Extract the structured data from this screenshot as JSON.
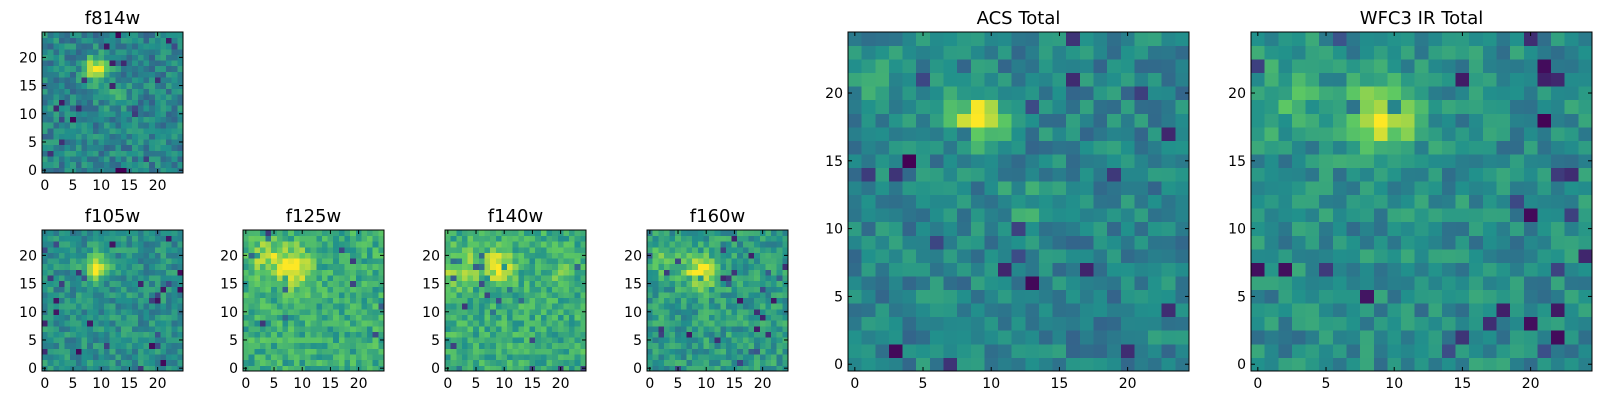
{
  "figure": {
    "colormap": "viridis",
    "colormap_stops": [
      "#440154",
      "#3b528b",
      "#21918c",
      "#5ec962",
      "#fde725"
    ]
  },
  "chart_data": [
    {
      "type": "heatmap",
      "title": "f814w",
      "grid_size": [
        25,
        25
      ],
      "xticks": [
        0,
        5,
        10,
        15,
        20
      ],
      "yticks": [
        0,
        5,
        10,
        15,
        20
      ],
      "xlim": [
        0,
        24
      ],
      "ylim": [
        0,
        24
      ],
      "source": {
        "x": 9,
        "y": 18,
        "sigma": 1.4,
        "amp": 0.55
      },
      "secondary_sources": [
        {
          "x": 12,
          "y": 13,
          "sigma": 1.5,
          "amp": 0.15
        }
      ],
      "background_level": 0.45,
      "noise": 0.14
    },
    {
      "type": "heatmap",
      "title": "f105w",
      "grid_size": [
        25,
        25
      ],
      "xticks": [
        0,
        5,
        10,
        15,
        20
      ],
      "yticks": [
        0,
        5,
        10,
        15,
        20
      ],
      "xlim": [
        0,
        24
      ],
      "ylim": [
        0,
        24
      ],
      "source": {
        "x": 9,
        "y": 18,
        "sigma": 1.5,
        "amp": 0.5
      },
      "secondary_sources": [],
      "background_level": 0.5,
      "noise": 0.13
    },
    {
      "type": "heatmap",
      "title": "f125w",
      "grid_size": [
        25,
        25
      ],
      "xticks": [
        0,
        5,
        10,
        15,
        20
      ],
      "yticks": [
        0,
        5,
        10,
        15,
        20
      ],
      "xlim": [
        0,
        24
      ],
      "ylim": [
        0,
        24
      ],
      "source": {
        "x": 8,
        "y": 18,
        "sigma": 2.3,
        "amp": 0.4
      },
      "secondary_sources": [
        {
          "x": 3,
          "y": 20,
          "sigma": 2.0,
          "amp": 0.2
        }
      ],
      "background_level": 0.62,
      "noise": 0.14
    },
    {
      "type": "heatmap",
      "title": "f140w",
      "grid_size": [
        25,
        25
      ],
      "xticks": [
        0,
        5,
        10,
        15,
        20
      ],
      "yticks": [
        0,
        5,
        10,
        15,
        20
      ],
      "xlim": [
        0,
        24
      ],
      "ylim": [
        0,
        24
      ],
      "source": {
        "x": 9,
        "y": 18,
        "sigma": 1.8,
        "amp": 0.4
      },
      "secondary_sources": [
        {
          "x": 2,
          "y": 18,
          "sigma": 2.2,
          "amp": 0.25
        },
        {
          "x": 20,
          "y": 17,
          "sigma": 0.9,
          "amp": 0.25
        }
      ],
      "background_level": 0.62,
      "noise": 0.14
    },
    {
      "type": "heatmap",
      "title": "f160w",
      "grid_size": [
        25,
        25
      ],
      "xticks": [
        0,
        5,
        10,
        15,
        20
      ],
      "yticks": [
        0,
        5,
        10,
        15,
        20
      ],
      "xlim": [
        0,
        24
      ],
      "ylim": [
        0,
        24
      ],
      "source": {
        "x": 9,
        "y": 17,
        "sigma": 1.9,
        "amp": 0.45
      },
      "secondary_sources": [
        {
          "x": 3,
          "y": 19,
          "sigma": 2.0,
          "amp": 0.18
        }
      ],
      "background_level": 0.55,
      "noise": 0.14
    },
    {
      "type": "heatmap",
      "title": "ACS Total",
      "grid_size": [
        25,
        25
      ],
      "xticks": [
        0,
        5,
        10,
        15,
        20
      ],
      "yticks": [
        0,
        5,
        10,
        15,
        20
      ],
      "xlim": [
        0,
        24
      ],
      "ylim": [
        0,
        24
      ],
      "source": {
        "x": 9,
        "y": 18,
        "sigma": 1.3,
        "amp": 0.55
      },
      "secondary_sources": [
        {
          "x": 13,
          "y": 12,
          "sigma": 1.6,
          "amp": 0.12
        },
        {
          "x": 2,
          "y": 21,
          "sigma": 1.8,
          "amp": 0.12
        }
      ],
      "background_level": 0.45,
      "noise": 0.13
    },
    {
      "type": "heatmap",
      "title": "WFC3 IR Total",
      "grid_size": [
        25,
        25
      ],
      "xticks": [
        0,
        5,
        10,
        15,
        20
      ],
      "yticks": [
        0,
        5,
        10,
        15,
        20
      ],
      "xlim": [
        0,
        24
      ],
      "ylim": [
        0,
        24
      ],
      "source": {
        "x": 9,
        "y": 18,
        "sigma": 1.7,
        "amp": 0.5
      },
      "secondary_sources": [
        {
          "x": 2,
          "y": 20,
          "sigma": 2.0,
          "amp": 0.18
        }
      ],
      "background_level": 0.48,
      "noise": 0.13
    }
  ]
}
